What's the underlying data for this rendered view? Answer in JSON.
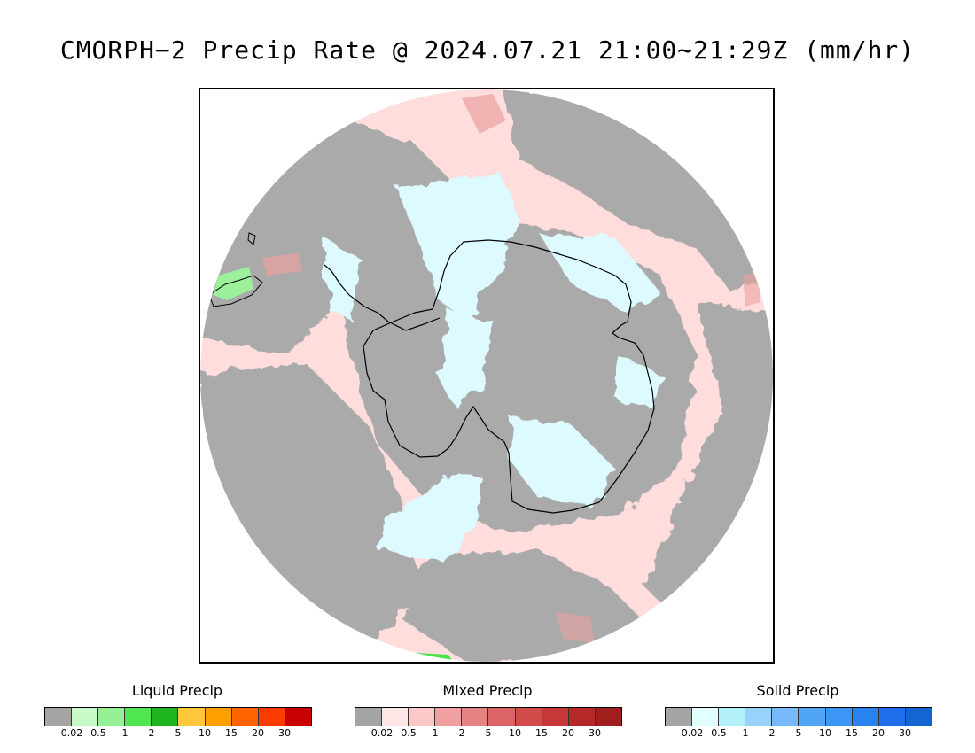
{
  "title": "CMORPH−2 Precip Rate @ 2024.07.21 21:00~21:29Z (mm/hr)",
  "map": {
    "projection": "south-polar-stereographic",
    "region": "Antarctica",
    "colors": {
      "no_precip": "#aaaaaa",
      "mixed_light": "#ffdddd",
      "mixed_moderate": "#eba0a0",
      "solid_light": "#dcfaff",
      "liquid_light": "#9cf09c",
      "liquid_moderate": "#4ee44e",
      "coastline": "#000000"
    }
  },
  "legends": [
    {
      "title": "Liquid Precip",
      "ticks": [
        "0.02",
        "0.5",
        "1",
        "2",
        "5",
        "10",
        "15",
        "20",
        "30"
      ],
      "colors": [
        "#a5a5a5",
        "#c8fac8",
        "#96f096",
        "#50e650",
        "#1eb41e",
        "#ffc83c",
        "#ffa000",
        "#ff6400",
        "#fa3c00",
        "#c80000"
      ]
    },
    {
      "title": "Mixed Precip",
      "ticks": [
        "0.02",
        "0.5",
        "1",
        "2",
        "5",
        "10",
        "15",
        "20",
        "30"
      ],
      "colors": [
        "#a5a5a5",
        "#ffe6e6",
        "#ffc8c8",
        "#f0a0a0",
        "#e68282",
        "#dc6464",
        "#d24b4b",
        "#c83737",
        "#b42828",
        "#a01e1e"
      ]
    },
    {
      "title": "Solid Precip",
      "ticks": [
        "0.02",
        "0.5",
        "1",
        "2",
        "5",
        "10",
        "15",
        "20",
        "30"
      ],
      "colors": [
        "#a5a5a5",
        "#e1ffff",
        "#b4f0fa",
        "#96d2fa",
        "#78b9fa",
        "#50a5f5",
        "#3c96f5",
        "#2882f0",
        "#1e6eeb",
        "#1464d2"
      ]
    }
  ]
}
